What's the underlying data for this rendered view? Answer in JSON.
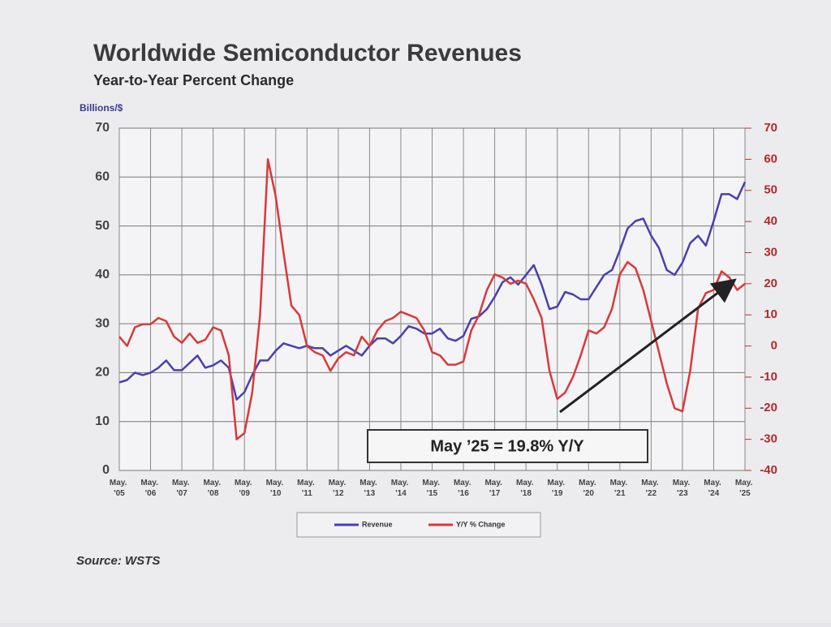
{
  "chart_data": {
    "type": "line",
    "title": "Worldwide Semiconductor Revenues",
    "subtitle": "Year-to-Year Percent Change",
    "ylabel": "Billions/$",
    "annotation": "May ’25 = 19.8% Y/Y",
    "source": "Source: WSTS",
    "x": [
      2005.37,
      2005.62,
      2005.87,
      2006.12,
      2006.37,
      2006.62,
      2006.87,
      2007.12,
      2007.37,
      2007.62,
      2007.87,
      2008.12,
      2008.37,
      2008.62,
      2008.87,
      2009.12,
      2009.37,
      2009.62,
      2009.87,
      2010.12,
      2010.37,
      2010.62,
      2010.87,
      2011.12,
      2011.37,
      2011.62,
      2011.87,
      2012.12,
      2012.37,
      2012.62,
      2012.87,
      2013.12,
      2013.37,
      2013.62,
      2013.87,
      2014.12,
      2014.37,
      2014.62,
      2014.87,
      2015.12,
      2015.37,
      2015.62,
      2015.87,
      2016.12,
      2016.37,
      2016.62,
      2016.87,
      2017.12,
      2017.37,
      2017.62,
      2017.87,
      2018.12,
      2018.37,
      2018.62,
      2018.87,
      2019.12,
      2019.37,
      2019.62,
      2019.87,
      2020.12,
      2020.37,
      2020.62,
      2020.87,
      2021.12,
      2021.37,
      2021.62,
      2021.87,
      2022.12,
      2022.37,
      2022.62,
      2022.87,
      2023.12,
      2023.37,
      2023.62,
      2023.87,
      2024.12,
      2024.37,
      2024.62,
      2024.87,
      2025.12,
      2025.37
    ],
    "series": [
      {
        "name": "Revenue",
        "color": "#4a3fb0",
        "values": [
          18,
          18.5,
          20,
          19.5,
          20,
          21,
          22.5,
          20.5,
          20.5,
          22,
          23.5,
          21,
          21.5,
          22.5,
          21,
          14.5,
          16,
          19.5,
          22.5,
          22.5,
          24.5,
          26,
          25.5,
          25,
          25.5,
          25,
          25,
          23.5,
          24.5,
          25.5,
          24.5,
          23.5,
          25.5,
          27,
          27,
          26,
          27.5,
          29.5,
          29,
          28,
          28,
          29,
          27,
          26.5,
          27.5,
          31,
          31.5,
          33,
          35.5,
          38.5,
          39.5,
          38,
          40,
          42,
          38,
          33,
          33.5,
          36.5,
          36,
          35,
          35,
          37.5,
          40,
          41,
          45,
          49.5,
          51,
          51.5,
          48,
          45.5,
          41,
          40,
          42.5,
          46.5,
          48,
          46,
          51,
          56.5,
          56.5,
          55.5,
          59
        ]
      },
      {
        "name": "Y/Y % Change",
        "color": "#d9383a",
        "axis": "y2",
        "values": [
          3,
          0,
          6,
          7,
          7,
          9,
          8,
          3,
          1,
          4,
          1,
          2,
          6,
          5,
          -3,
          -30,
          -28,
          -15,
          10,
          60,
          48,
          30,
          13,
          10,
          0,
          -2,
          -3,
          -8,
          -4,
          -2,
          -3,
          3,
          0,
          5,
          8,
          9,
          11,
          10,
          9,
          5,
          -2,
          -3,
          -6,
          -6,
          -5,
          5,
          10,
          18,
          23,
          22,
          20,
          21,
          20,
          15,
          9,
          -8,
          -17,
          -15,
          -10,
          -3,
          5,
          4,
          6,
          12,
          23,
          27,
          25,
          18,
          8,
          -2,
          -12,
          -20,
          -21,
          -8,
          12,
          17,
          18,
          24,
          22,
          18,
          20
        ]
      }
    ],
    "xlim": [
      2005.37,
      2025.37
    ],
    "xticks": [
      {
        "value": 2005.37,
        "label": "May. '05"
      },
      {
        "value": 2006.37,
        "label": "May. '06"
      },
      {
        "value": 2007.37,
        "label": "May. '07"
      },
      {
        "value": 2008.37,
        "label": "May. '08"
      },
      {
        "value": 2009.37,
        "label": "May. '09"
      },
      {
        "value": 2010.37,
        "label": "May. '10"
      },
      {
        "value": 2011.37,
        "label": "May. '11"
      },
      {
        "value": 2012.37,
        "label": "May. '12"
      },
      {
        "value": 2013.37,
        "label": "May. '13"
      },
      {
        "value": 2014.37,
        "label": "May. '14"
      },
      {
        "value": 2015.37,
        "label": "May. '15"
      },
      {
        "value": 2016.37,
        "label": "May. '16"
      },
      {
        "value": 2017.37,
        "label": "May. '17"
      },
      {
        "value": 2018.37,
        "label": "May. '18"
      },
      {
        "value": 2019.37,
        "label": "May. '19"
      },
      {
        "value": 2020.37,
        "label": "May. '20"
      },
      {
        "value": 2021.37,
        "label": "May. '21"
      },
      {
        "value": 2022.37,
        "label": "May. '22"
      },
      {
        "value": 2023.37,
        "label": "May. '23"
      },
      {
        "value": 2024.37,
        "label": "May. '24"
      },
      {
        "value": 2025.37,
        "label": "May. '25"
      }
    ],
    "ylim": [
      0,
      70
    ],
    "yticks": [
      0,
      10,
      20,
      30,
      40,
      50,
      60,
      70
    ],
    "y2lim": [
      -40,
      70
    ],
    "y2ticks": [
      -40,
      -30,
      -20,
      -10,
      0,
      10,
      20,
      30,
      40,
      50,
      60,
      70
    ],
    "grid": true
  }
}
